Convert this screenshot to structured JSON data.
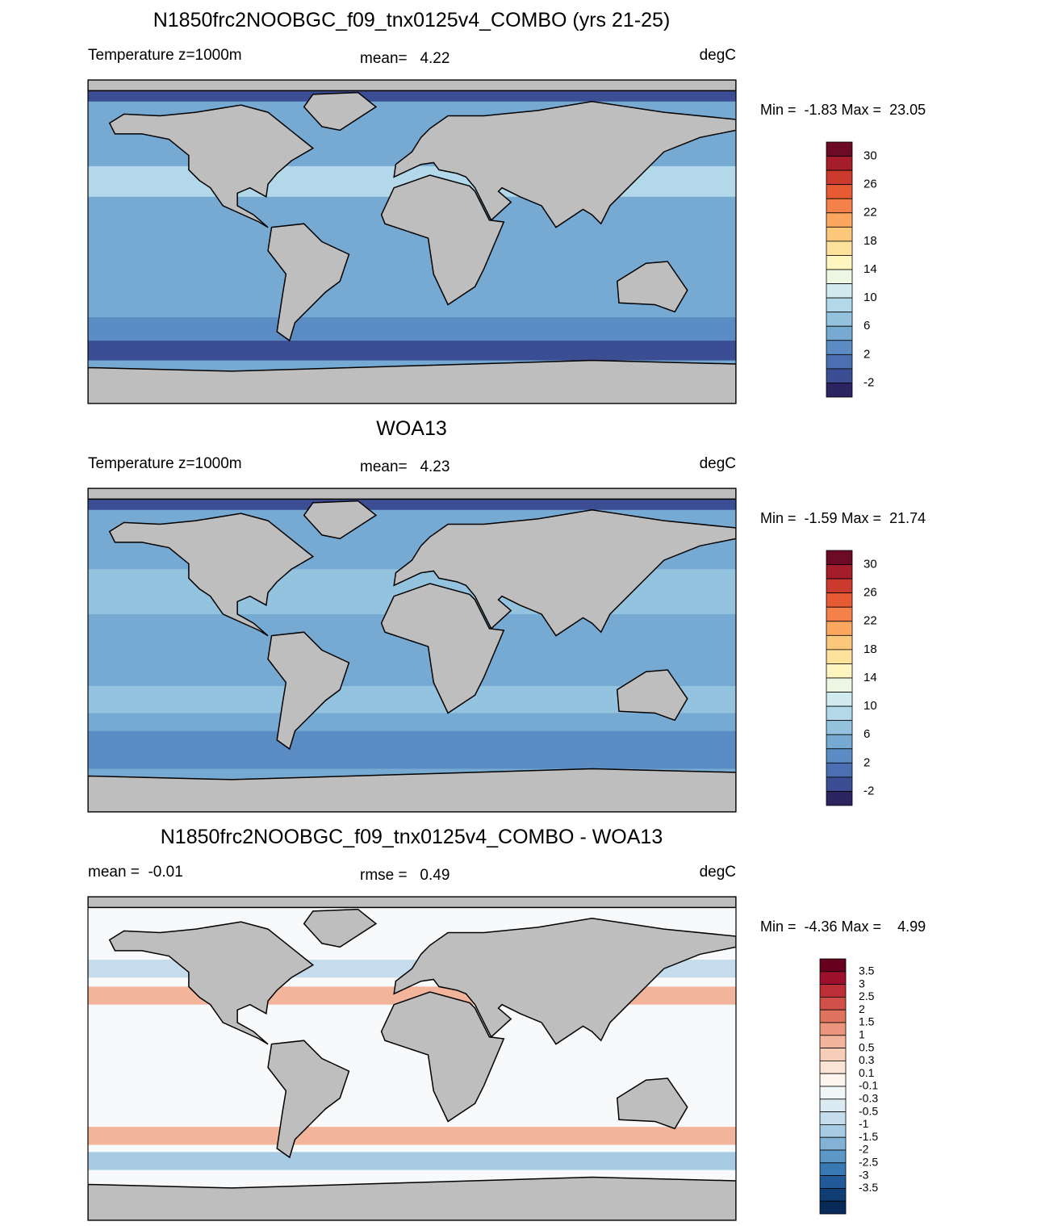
{
  "panels": [
    {
      "title": "N1850frc2NOOBGC_f09_tnx0125v4_COMBO (yrs 21-25)",
      "left_label": "Temperature z=1000m",
      "center_label": "mean=   4.22",
      "units": "degC",
      "minmax": "Min =  -1.83 Max =  23.05",
      "colorbar": {
        "labels": [
          30,
          26,
          22,
          18,
          14,
          10,
          6,
          2,
          -2
        ],
        "colors": [
          "#6d0a26",
          "#a51c2b",
          "#cc3a2d",
          "#e65a34",
          "#f5814a",
          "#fba75f",
          "#fdc77b",
          "#fee29b",
          "#fef5bf",
          "#edf6e3",
          "#d1eaf0",
          "#b3d8ea",
          "#94c3df",
          "#76aad3",
          "#5b8cc4",
          "#4a6fb3",
          "#3b4e93",
          "#2c2361"
        ]
      }
    },
    {
      "title": "WOA13",
      "left_label": "Temperature z=1000m",
      "center_label": "mean=   4.23",
      "units": "degC",
      "minmax": "Min =  -1.59 Max =  21.74",
      "colorbar": {
        "labels": [
          30,
          26,
          22,
          18,
          14,
          10,
          6,
          2,
          -2
        ],
        "colors": [
          "#6d0a26",
          "#a51c2b",
          "#cc3a2d",
          "#e65a34",
          "#f5814a",
          "#fba75f",
          "#fdc77b",
          "#fee29b",
          "#fef5bf",
          "#edf6e3",
          "#d1eaf0",
          "#b3d8ea",
          "#94c3df",
          "#76aad3",
          "#5b8cc4",
          "#4a6fb3",
          "#3b4e93",
          "#2c2361"
        ]
      }
    },
    {
      "title": "N1850frc2NOOBGC_f09_tnx0125v4_COMBO - WOA13",
      "left_label": "mean =  -0.01",
      "center_label": "rmse =   0.49",
      "units": "degC",
      "minmax": "Min =  -4.36 Max =    4.99",
      "colorbar": {
        "labels": [
          3.5,
          3,
          2.5,
          2,
          1.5,
          1,
          0.5,
          0.3,
          0.1,
          -0.1,
          -0.3,
          -0.5,
          -1,
          -1.5,
          -2,
          -2.5,
          -3,
          -3.5
        ],
        "colors": [
          "#67001f",
          "#9e0f2c",
          "#bd2f36",
          "#d1504a",
          "#df7360",
          "#ea957c",
          "#f3b49c",
          "#f8cdb8",
          "#fbe3d6",
          "#fdf4ee",
          "#f1f6f9",
          "#dceaf3",
          "#c4dcec",
          "#a6cbe3",
          "#82b3d7",
          "#5b97c7",
          "#3979b3",
          "#225a99",
          "#0f3d74",
          "#082a59"
        ]
      }
    }
  ]
}
